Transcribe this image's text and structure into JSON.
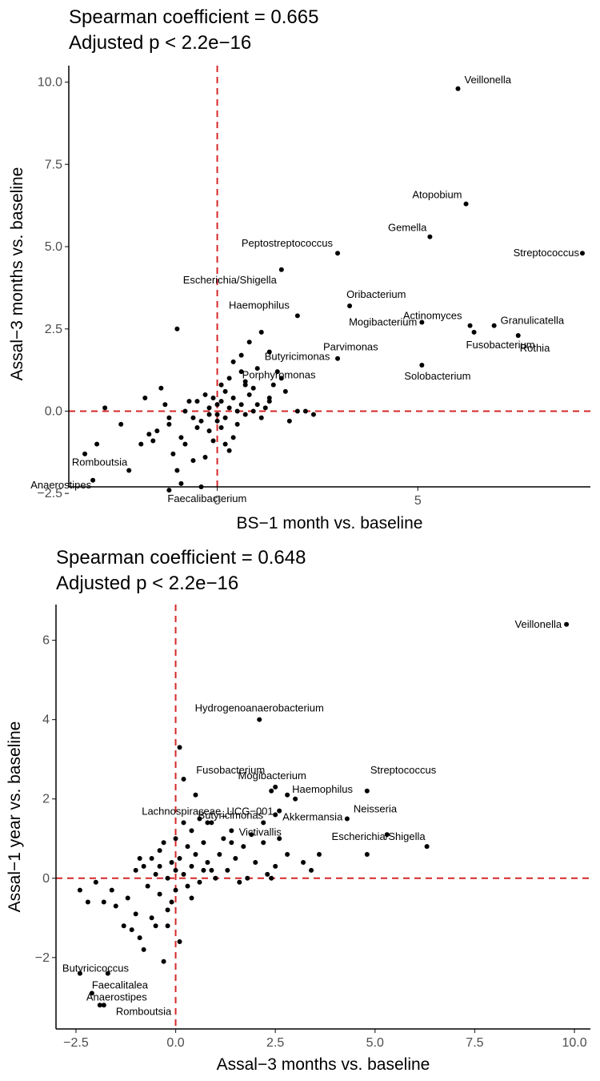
{
  "chart_data": [
    {
      "type": "scatter",
      "title": "Spearman coefficient = 0.665",
      "subtitle": "Adjusted p < 2.2e−16",
      "xlabel": "BS−1 month vs. baseline",
      "ylabel": "Assal−3 months vs. baseline",
      "xlim": [
        -3.7,
        9.3
      ],
      "ylim": [
        -2.3,
        10.5
      ],
      "xticks": [
        0,
        5
      ],
      "xtick_labels": [
        "0",
        "5"
      ],
      "yticks": [
        -2.5,
        0,
        2.5,
        5,
        7.5,
        10
      ],
      "ytick_labels": [
        "−2.5",
        "0.0",
        "2.5",
        "5.0",
        "7.5",
        "10.0"
      ],
      "ref_lines": {
        "x": 0,
        "y": 0,
        "color": "#d62728",
        "style": "dashed"
      },
      "grid": false,
      "point_color": "#000000",
      "labeled_points": [
        {
          "label": "Veillonella",
          "x": 6.0,
          "y": 9.8
        },
        {
          "label": "Atopobium",
          "x": 6.2,
          "y": 6.3
        },
        {
          "label": "Gemella",
          "x": 5.3,
          "y": 5.3
        },
        {
          "label": "Streptococcus",
          "x": 9.1,
          "y": 4.8
        },
        {
          "label": "Peptostreptococcus",
          "x": 3.0,
          "y": 4.8
        },
        {
          "label": "Escherichia/Shigella",
          "x": 1.6,
          "y": 4.3
        },
        {
          "label": "Oribacterium",
          "x": 3.3,
          "y": 3.2
        },
        {
          "label": "Actinomyces",
          "x": 6.3,
          "y": 2.6
        },
        {
          "label": "Haemophilus",
          "x": 2.0,
          "y": 2.9
        },
        {
          "label": "Mogibacterium",
          "x": 5.1,
          "y": 2.7
        },
        {
          "label": "Granulicatella",
          "x": 6.9,
          "y": 2.6
        },
        {
          "label": "Rothia",
          "x": 7.5,
          "y": 2.3
        },
        {
          "label": "Fusobacterium",
          "x": 6.4,
          "y": 2.4
        },
        {
          "label": "Butyricimonas",
          "x": 1.3,
          "y": 1.8
        },
        {
          "label": "Parvimonas",
          "x": 3.0,
          "y": 1.6
        },
        {
          "label": "Solobacterium",
          "x": 5.1,
          "y": 1.4
        },
        {
          "label": "Porphyromonas",
          "x": 0.7,
          "y": 0.8
        },
        {
          "label": "Romboutsia",
          "x": -2.2,
          "y": -1.8
        },
        {
          "label": "Anaerostipes",
          "x": -3.1,
          "y": -2.1
        },
        {
          "label": "Faecalibacterium",
          "x": -1.2,
          "y": -2.4
        }
      ],
      "points": [
        [
          -3.3,
          -1.3
        ],
        [
          -3.0,
          -1.0
        ],
        [
          -2.8,
          0.1
        ],
        [
          -2.4,
          -0.4
        ],
        [
          -1.8,
          0.4
        ],
        [
          -1.7,
          -0.7
        ],
        [
          -1.6,
          -0.9
        ],
        [
          -1.5,
          -0.6
        ],
        [
          -1.4,
          0.7
        ],
        [
          -1.3,
          0.2
        ],
        [
          -1.2,
          -0.2
        ],
        [
          -1.1,
          -1.3
        ],
        [
          -1.0,
          2.5
        ],
        [
          -1.0,
          -1.8
        ],
        [
          -0.9,
          -0.8
        ],
        [
          -0.9,
          -2.2
        ],
        [
          -0.8,
          0.0
        ],
        [
          -0.8,
          -1.0
        ],
        [
          -0.7,
          0.3
        ],
        [
          -0.6,
          -0.2
        ],
        [
          -0.5,
          -0.5
        ],
        [
          -0.4,
          -0.3
        ],
        [
          -0.4,
          -2.3
        ],
        [
          -0.3,
          0.5
        ],
        [
          -0.3,
          -1.4
        ],
        [
          -0.2,
          0.1
        ],
        [
          -0.2,
          -0.6
        ],
        [
          -0.1,
          0.4
        ],
        [
          -0.1,
          -0.9
        ],
        [
          0.0,
          -0.3
        ],
        [
          0.0,
          -0.1
        ],
        [
          0.0,
          0.2
        ],
        [
          0.1,
          0.3
        ],
        [
          0.1,
          -0.5
        ],
        [
          0.2,
          0.6
        ],
        [
          0.2,
          -0.2
        ],
        [
          0.3,
          1.0
        ],
        [
          0.3,
          0.1
        ],
        [
          0.3,
          -1.2
        ],
        [
          0.4,
          1.5
        ],
        [
          0.4,
          0.4
        ],
        [
          0.5,
          -0.4
        ],
        [
          0.5,
          0.0
        ],
        [
          0.6,
          1.2
        ],
        [
          0.6,
          0.2
        ],
        [
          0.7,
          -0.1
        ],
        [
          0.8,
          2.1
        ],
        [
          0.8,
          0.5
        ],
        [
          0.9,
          0.0
        ],
        [
          1.0,
          1.3
        ],
        [
          1.0,
          0.2
        ],
        [
          1.1,
          -0.2
        ],
        [
          1.2,
          0.1
        ],
        [
          1.3,
          0.4
        ],
        [
          1.4,
          0.8
        ],
        [
          1.5,
          1.2
        ],
        [
          1.6,
          1.0
        ],
        [
          1.7,
          0.6
        ],
        [
          1.8,
          -0.3
        ],
        [
          2.0,
          0.0
        ],
        [
          2.2,
          0.0
        ],
        [
          2.4,
          -0.1
        ],
        [
          0.9,
          0.7
        ],
        [
          -1.9,
          -1.0
        ],
        [
          -0.6,
          -1.5
        ],
        [
          0.6,
          1.7
        ],
        [
          -0.2,
          -0.1
        ],
        [
          0.4,
          -0.8
        ],
        [
          1.3,
          0.3
        ],
        [
          -0.5,
          0.3
        ],
        [
          0.1,
          0.8
        ],
        [
          0.7,
          0.9
        ],
        [
          -1.2,
          -0.4
        ],
        [
          0.2,
          -1.0
        ],
        [
          1.1,
          2.4
        ]
      ]
    },
    {
      "type": "scatter",
      "title": "Spearman coefficient = 0.648",
      "subtitle": "Adjusted p < 2.2e−16",
      "xlabel": "Assal−3 months vs. baseline",
      "ylabel": "Assal−1 year vs. baseline",
      "xlim": [
        -3.0,
        10.4
      ],
      "ylim": [
        -3.8,
        6.9
      ],
      "xticks": [
        -2.5,
        0,
        2.5,
        5,
        7.5,
        10
      ],
      "xtick_labels": [
        "−2.5",
        "0.0",
        "2.5",
        "5.0",
        "7.5",
        "10.0"
      ],
      "yticks": [
        -2,
        0,
        2,
        4,
        6
      ],
      "ytick_labels": [
        "−2",
        "0",
        "2",
        "4",
        "6"
      ],
      "ref_lines": {
        "x": 0,
        "y": 0,
        "color": "#d62728",
        "style": "dashed"
      },
      "grid": false,
      "point_color": "#000000",
      "labeled_points": [
        {
          "label": "Veillonella",
          "x": 9.8,
          "y": 6.4
        },
        {
          "label": "Hydrogenoanaerobacterium",
          "x": 2.1,
          "y": 4.0
        },
        {
          "label": "Fusobacterium",
          "x": 2.4,
          "y": 2.2
        },
        {
          "label": "Mogibacterium",
          "x": 2.5,
          "y": 2.3
        },
        {
          "label": "Streptococcus",
          "x": 4.8,
          "y": 2.2
        },
        {
          "label": "Haemophilus",
          "x": 2.8,
          "y": 2.1
        },
        {
          "label": "Butyricimonas",
          "x": 2.5,
          "y": 1.6
        },
        {
          "label": "Neisseria",
          "x": 4.3,
          "y": 1.5
        },
        {
          "label": "Lachnospiraceae_UCG−001",
          "x": 0.8,
          "y": 1.4
        },
        {
          "label": "Akkermansia",
          "x": 2.6,
          "y": 1.7
        },
        {
          "label": "Victivallis",
          "x": 2.2,
          "y": 1.4
        },
        {
          "label": "Escherichia/Shigella",
          "x": 6.3,
          "y": 0.8
        },
        {
          "label": "Butyricicoccus",
          "x": -2.4,
          "y": -2.4
        },
        {
          "label": "Faecalitalea",
          "x": -2.1,
          "y": -2.9
        },
        {
          "label": "Anaerostipes",
          "x": -1.8,
          "y": -3.2
        },
        {
          "label": "Romboutsia",
          "x": -1.9,
          "y": -3.2
        }
      ],
      "points": [
        [
          -2.4,
          -0.3
        ],
        [
          -2.2,
          -0.6
        ],
        [
          -2.0,
          -0.1
        ],
        [
          -1.8,
          -0.6
        ],
        [
          -1.6,
          -0.3
        ],
        [
          -1.5,
          -0.7
        ],
        [
          -1.3,
          -1.2
        ],
        [
          -1.2,
          -0.5
        ],
        [
          -1.1,
          -1.3
        ],
        [
          -1.0,
          0.2
        ],
        [
          -1.0,
          -0.9
        ],
        [
          -0.9,
          0.5
        ],
        [
          -0.9,
          -1.5
        ],
        [
          -0.8,
          0.3
        ],
        [
          -0.8,
          -1.8
        ],
        [
          -0.7,
          -0.2
        ],
        [
          -0.6,
          -1.0
        ],
        [
          -0.5,
          0.1
        ],
        [
          -0.5,
          -1.2
        ],
        [
          -0.4,
          0.7
        ],
        [
          -0.4,
          -0.4
        ],
        [
          -0.3,
          -2.1
        ],
        [
          -0.2,
          0.0
        ],
        [
          -0.2,
          -0.8
        ],
        [
          -0.1,
          0.4
        ],
        [
          -0.1,
          -0.6
        ],
        [
          0.0,
          0.2
        ],
        [
          0.0,
          -0.3
        ],
        [
          0.0,
          1.0
        ],
        [
          0.1,
          3.3
        ],
        [
          0.1,
          0.5
        ],
        [
          0.1,
          -1.6
        ],
        [
          0.2,
          1.4
        ],
        [
          0.2,
          0.1
        ],
        [
          0.3,
          0.8
        ],
        [
          0.3,
          -0.2
        ],
        [
          0.4,
          1.2
        ],
        [
          0.4,
          0.3
        ],
        [
          0.5,
          2.1
        ],
        [
          0.5,
          0.6
        ],
        [
          0.6,
          -0.1
        ],
        [
          0.7,
          0.9
        ],
        [
          0.8,
          0.4
        ],
        [
          0.9,
          1.4
        ],
        [
          1.0,
          0.0
        ],
        [
          1.1,
          0.6
        ],
        [
          1.2,
          1.0
        ],
        [
          1.3,
          0.2
        ],
        [
          1.4,
          1.2
        ],
        [
          1.5,
          0.5
        ],
        [
          1.6,
          -0.1
        ],
        [
          1.7,
          0.8
        ],
        [
          1.8,
          0.0
        ],
        [
          1.9,
          1.1
        ],
        [
          2.0,
          0.4
        ],
        [
          2.2,
          0.9
        ],
        [
          2.3,
          0.1
        ],
        [
          2.5,
          0.3
        ],
        [
          2.6,
          1.0
        ],
        [
          2.8,
          0.6
        ],
        [
          3.0,
          2.0
        ],
        [
          3.2,
          0.4
        ],
        [
          3.4,
          0.2
        ],
        [
          3.6,
          0.6
        ],
        [
          4.8,
          0.6
        ],
        [
          5.3,
          1.1
        ],
        [
          -0.3,
          0.9
        ],
        [
          0.6,
          1.5
        ],
        [
          0.2,
          2.5
        ],
        [
          -0.6,
          0.5
        ],
        [
          0.9,
          0.2
        ],
        [
          1.4,
          0.9
        ],
        [
          -1.7,
          -2.4
        ],
        [
          -0.2,
          -1.2
        ],
        [
          0.4,
          -0.5
        ],
        [
          2.4,
          0.0
        ],
        [
          0.7,
          0.2
        ],
        [
          -0.4,
          0.3
        ]
      ]
    }
  ]
}
